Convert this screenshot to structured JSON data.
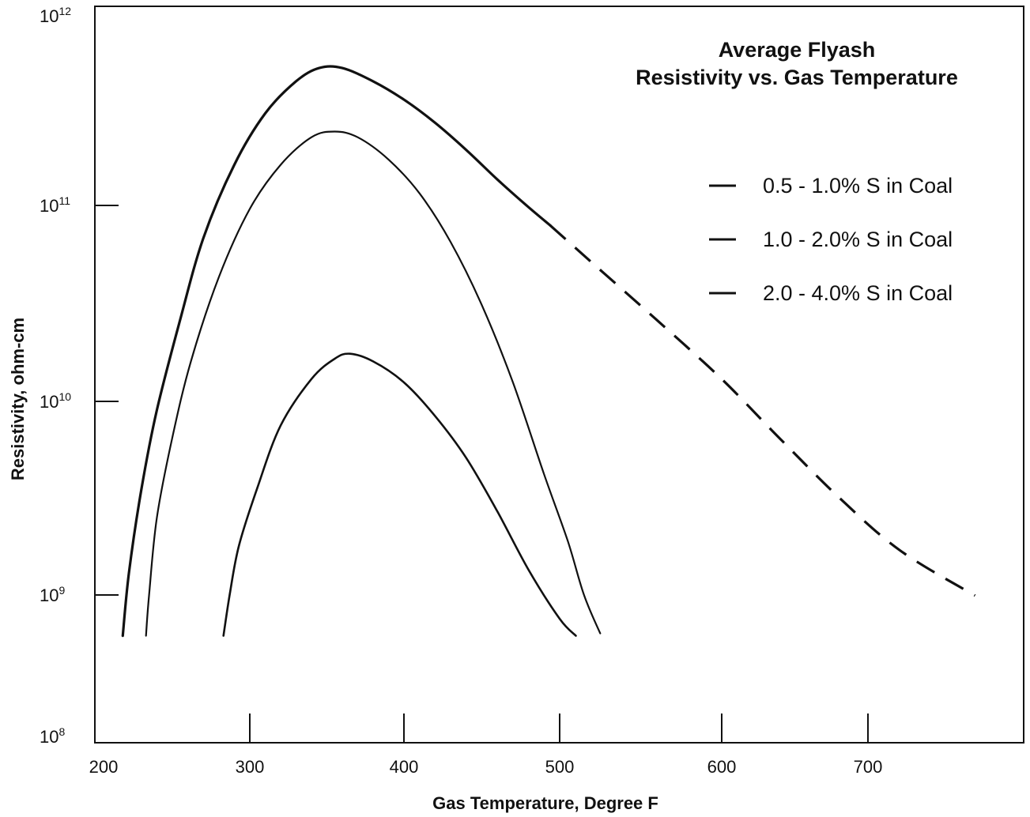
{
  "chart_data": {
    "type": "line",
    "title": [
      "Average Flyash",
      "Resistivity vs. Gas Temperature"
    ],
    "xlabel": "Gas Temperature, Degree F",
    "ylabel": "Resistivity, ohm-cm",
    "xlim": [
      200,
      790
    ],
    "ylim": [
      100000000.0,
      1000000000000.0
    ],
    "yscale": "log",
    "grid": false,
    "legend_placement": "top-right",
    "x_ticks": [
      {
        "value": 200,
        "label": "200"
      },
      {
        "value": 300,
        "label": "300"
      },
      {
        "value": 400,
        "label": "400"
      },
      {
        "value": 500,
        "label": "500"
      },
      {
        "value": 600,
        "label": "600"
      },
      {
        "value": 700,
        "label": "700"
      }
    ],
    "y_ticks": [
      {
        "value": 100000000.0,
        "base": "10",
        "exp": "8"
      },
      {
        "value": 1000000000.0,
        "base": "10",
        "exp": "9"
      },
      {
        "value": 10000000000.0,
        "base": "10",
        "exp": "10"
      },
      {
        "value": 100000000000.0,
        "base": "10",
        "exp": "11"
      },
      {
        "value": 1000000000000.0,
        "base": "10",
        "exp": "12"
      }
    ],
    "series": [
      {
        "name": "0.5 - 1.0% S in Coal",
        "stroke_width": 3.2,
        "points": [
          [
            218,
            530000000.0
          ],
          [
            222,
            1300000000.0
          ],
          [
            230,
            3500000000.0
          ],
          [
            240,
            9000000000.0
          ],
          [
            255,
            26000000000.0
          ],
          [
            270,
            68000000000.0
          ],
          [
            290,
            160000000000.0
          ],
          [
            310,
            290000000000.0
          ],
          [
            330,
            420000000000.0
          ],
          [
            345,
            490000000000.0
          ],
          [
            360,
            490000000000.0
          ],
          [
            380,
            420000000000.0
          ],
          [
            400,
            340000000000.0
          ],
          [
            420,
            260000000000.0
          ],
          [
            440,
            190000000000.0
          ],
          [
            460,
            135000000000.0
          ],
          [
            480,
            98000000000.0
          ],
          [
            494,
            79000000000.0
          ]
        ],
        "extrapolated": [
          [
            494,
            79000000000.0
          ],
          [
            520,
            51000000000.0
          ],
          [
            560,
            26000000000.0
          ],
          [
            600,
            13000000000.0
          ],
          [
            640,
            6400000000.0
          ],
          [
            680,
            3200000000.0
          ],
          [
            720,
            1700000000.0
          ],
          [
            767,
            990000000.0
          ]
        ]
      },
      {
        "name": "1.0 - 2.0% S in Coal",
        "stroke_width": 2.2,
        "points": [
          [
            233,
            530000000.0
          ],
          [
            235,
            1000000000.0
          ],
          [
            240,
            2500000000.0
          ],
          [
            250,
            6500000000.0
          ],
          [
            262,
            16000000000.0
          ],
          [
            280,
            43000000000.0
          ],
          [
            300,
            96000000000.0
          ],
          [
            320,
            160000000000.0
          ],
          [
            340,
            220000000000.0
          ],
          [
            355,
            235000000000.0
          ],
          [
            370,
            220000000000.0
          ],
          [
            390,
            170000000000.0
          ],
          [
            410,
            115000000000.0
          ],
          [
            430,
            65000000000.0
          ],
          [
            450,
            31000000000.0
          ],
          [
            470,
            12500000000.0
          ],
          [
            490,
            4200000000.0
          ],
          [
            505,
            1900000000.0
          ],
          [
            515,
            1000000000.0
          ],
          [
            525,
            550000000.0
          ]
        ]
      },
      {
        "name": "2.0 - 4.0% S in Coal",
        "stroke_width": 2.6,
        "points": [
          [
            283,
            530000000.0
          ],
          [
            287,
            1000000000.0
          ],
          [
            293,
            1800000000.0
          ],
          [
            305,
            3600000000.0
          ],
          [
            320,
            7500000000.0
          ],
          [
            340,
            13000000000.0
          ],
          [
            355,
            16500000000.0
          ],
          [
            365,
            17500000000.0
          ],
          [
            380,
            16000000000.0
          ],
          [
            400,
            12500000000.0
          ],
          [
            420,
            8400000000.0
          ],
          [
            440,
            5100000000.0
          ],
          [
            460,
            2700000000.0
          ],
          [
            480,
            1350000000.0
          ],
          [
            500,
            690000000.0
          ],
          [
            510,
            530000000.0
          ]
        ]
      }
    ]
  }
}
